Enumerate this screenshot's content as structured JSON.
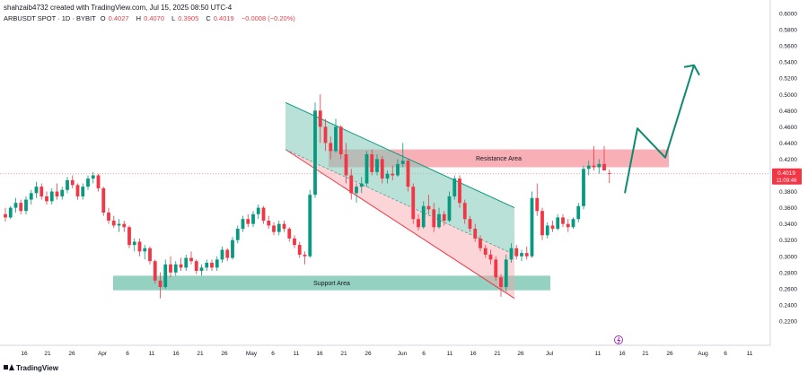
{
  "header": {
    "credit": "shahzaib4732 created with TradingView.com, Jul 15, 2025 08:50 UTC-4",
    "symbol": "ARBUSDT SPOT · 1D · BYBIT",
    "open_label": "O",
    "open": "0.4027",
    "high_label": "H",
    "high": "0.4070",
    "low_label": "L",
    "low": "0.3905",
    "close_label": "C",
    "close": "0.4019",
    "change": "−0.0008 (−0.20%)"
  },
  "footer": {
    "brand": "TradingView"
  },
  "chart_data": {
    "type": "candlestick",
    "ylim": [
      0.2,
      0.6
    ],
    "y_ticks": [
      "0.6000",
      "0.5800",
      "0.5600",
      "0.5400",
      "0.5200",
      "0.5000",
      "0.4800",
      "0.4600",
      "0.4400",
      "0.4200",
      "0.4000",
      "0.3800",
      "0.3600",
      "0.3400",
      "0.3200",
      "0.3000",
      "0.2800",
      "0.2600",
      "0.2400",
      "0.2200"
    ],
    "x_ticks": [
      "16",
      "21",
      "26",
      "Apr",
      "6",
      "11",
      "16",
      "21",
      "26",
      "May",
      "6",
      "11",
      "16",
      "21",
      "26",
      "Jun",
      "6",
      "11",
      "16",
      "21",
      "26",
      "Jul",
      "11",
      "16",
      "21",
      "26",
      "Aug",
      "6",
      "11",
      "16"
    ],
    "price_label": {
      "price": "0.4019",
      "countdown": "11:09:46",
      "color": "#f23645"
    },
    "zones": [
      {
        "label": "Resistance Area",
        "low": 0.41,
        "high": 0.432,
        "color": "#f7a1a8"
      },
      {
        "label": "Support Area",
        "low": 0.258,
        "high": 0.276,
        "color": "#81c9b6"
      }
    ],
    "colors": {
      "up": "#089981",
      "down": "#f23645",
      "projection": "#0b8a6f"
    },
    "candles": [
      [
        0.352,
        0.36,
        0.343,
        0.348
      ],
      [
        0.348,
        0.362,
        0.346,
        0.36
      ],
      [
        0.36,
        0.372,
        0.354,
        0.366
      ],
      [
        0.366,
        0.37,
        0.352,
        0.356
      ],
      [
        0.356,
        0.374,
        0.352,
        0.37
      ],
      [
        0.37,
        0.382,
        0.364,
        0.378
      ],
      [
        0.378,
        0.392,
        0.372,
        0.386
      ],
      [
        0.386,
        0.39,
        0.37,
        0.374
      ],
      [
        0.374,
        0.38,
        0.364,
        0.368
      ],
      [
        0.368,
        0.384,
        0.364,
        0.38
      ],
      [
        0.38,
        0.39,
        0.37,
        0.374
      ],
      [
        0.374,
        0.386,
        0.37,
        0.382
      ],
      [
        0.382,
        0.398,
        0.378,
        0.394
      ],
      [
        0.394,
        0.4,
        0.384,
        0.388
      ],
      [
        0.388,
        0.39,
        0.37,
        0.374
      ],
      [
        0.374,
        0.39,
        0.37,
        0.386
      ],
      [
        0.386,
        0.4,
        0.382,
        0.396
      ],
      [
        0.396,
        0.404,
        0.39,
        0.4
      ],
      [
        0.4,
        0.402,
        0.38,
        0.384
      ],
      [
        0.384,
        0.386,
        0.35,
        0.354
      ],
      [
        0.354,
        0.36,
        0.34,
        0.344
      ],
      [
        0.344,
        0.35,
        0.335,
        0.338
      ],
      [
        0.338,
        0.346,
        0.33,
        0.34
      ],
      [
        0.34,
        0.344,
        0.33,
        0.336
      ],
      [
        0.336,
        0.338,
        0.31,
        0.314
      ],
      [
        0.314,
        0.322,
        0.306,
        0.318
      ],
      [
        0.318,
        0.322,
        0.3,
        0.306
      ],
      [
        0.306,
        0.314,
        0.296,
        0.31
      ],
      [
        0.31,
        0.312,
        0.29,
        0.294
      ],
      [
        0.294,
        0.296,
        0.266,
        0.27
      ],
      [
        0.27,
        0.28,
        0.248,
        0.262
      ],
      [
        0.262,
        0.296,
        0.26,
        0.29
      ],
      [
        0.29,
        0.3,
        0.274,
        0.28
      ],
      [
        0.28,
        0.294,
        0.276,
        0.29
      ],
      [
        0.29,
        0.298,
        0.282,
        0.286
      ],
      [
        0.286,
        0.302,
        0.282,
        0.298
      ],
      [
        0.298,
        0.306,
        0.29,
        0.294
      ],
      [
        0.294,
        0.296,
        0.278,
        0.282
      ],
      [
        0.282,
        0.29,
        0.276,
        0.286
      ],
      [
        0.286,
        0.296,
        0.282,
        0.292
      ],
      [
        0.292,
        0.296,
        0.282,
        0.286
      ],
      [
        0.286,
        0.3,
        0.282,
        0.296
      ],
      [
        0.296,
        0.312,
        0.292,
        0.308
      ],
      [
        0.308,
        0.31,
        0.294,
        0.298
      ],
      [
        0.298,
        0.324,
        0.296,
        0.32
      ],
      [
        0.32,
        0.338,
        0.316,
        0.334
      ],
      [
        0.334,
        0.35,
        0.33,
        0.346
      ],
      [
        0.346,
        0.352,
        0.336,
        0.34
      ],
      [
        0.34,
        0.356,
        0.336,
        0.352
      ],
      [
        0.352,
        0.364,
        0.346,
        0.36
      ],
      [
        0.36,
        0.362,
        0.34,
        0.344
      ],
      [
        0.344,
        0.35,
        0.334,
        0.338
      ],
      [
        0.338,
        0.342,
        0.326,
        0.33
      ],
      [
        0.33,
        0.344,
        0.326,
        0.34
      ],
      [
        0.34,
        0.344,
        0.33,
        0.334
      ],
      [
        0.334,
        0.336,
        0.318,
        0.322
      ],
      [
        0.322,
        0.326,
        0.31,
        0.314
      ],
      [
        0.314,
        0.318,
        0.298,
        0.302
      ],
      [
        0.302,
        0.306,
        0.29,
        0.3
      ],
      [
        0.3,
        0.382,
        0.298,
        0.376
      ],
      [
        0.376,
        0.49,
        0.372,
        0.48
      ],
      [
        0.48,
        0.5,
        0.44,
        0.46
      ],
      [
        0.46,
        0.47,
        0.43,
        0.44
      ],
      [
        0.44,
        0.448,
        0.42,
        0.43
      ],
      [
        0.43,
        0.47,
        0.428,
        0.46
      ],
      [
        0.46,
        0.462,
        0.42,
        0.426
      ],
      [
        0.426,
        0.44,
        0.39,
        0.4
      ],
      [
        0.4,
        0.408,
        0.37,
        0.378
      ],
      [
        0.378,
        0.39,
        0.366,
        0.386
      ],
      [
        0.386,
        0.398,
        0.378,
        0.39
      ],
      [
        0.39,
        0.43,
        0.386,
        0.426
      ],
      [
        0.426,
        0.432,
        0.4,
        0.404
      ],
      [
        0.404,
        0.426,
        0.4,
        0.42
      ],
      [
        0.42,
        0.424,
        0.39,
        0.396
      ],
      [
        0.396,
        0.406,
        0.39,
        0.402
      ],
      [
        0.402,
        0.412,
        0.394,
        0.4
      ],
      [
        0.4,
        0.42,
        0.398,
        0.414
      ],
      [
        0.414,
        0.44,
        0.41,
        0.418
      ],
      [
        0.418,
        0.42,
        0.38,
        0.386
      ],
      [
        0.386,
        0.39,
        0.34,
        0.346
      ],
      [
        0.346,
        0.352,
        0.332,
        0.336
      ],
      [
        0.336,
        0.368,
        0.334,
        0.362
      ],
      [
        0.362,
        0.376,
        0.352,
        0.358
      ],
      [
        0.358,
        0.366,
        0.33,
        0.336
      ],
      [
        0.336,
        0.36,
        0.334,
        0.352
      ],
      [
        0.352,
        0.356,
        0.338,
        0.344
      ],
      [
        0.344,
        0.38,
        0.342,
        0.374
      ],
      [
        0.374,
        0.4,
        0.37,
        0.396
      ],
      [
        0.396,
        0.4,
        0.36,
        0.366
      ],
      [
        0.366,
        0.37,
        0.34,
        0.346
      ],
      [
        0.346,
        0.35,
        0.33,
        0.334
      ],
      [
        0.334,
        0.34,
        0.318,
        0.322
      ],
      [
        0.322,
        0.326,
        0.306,
        0.31
      ],
      [
        0.31,
        0.314,
        0.298,
        0.302
      ],
      [
        0.302,
        0.308,
        0.29,
        0.296
      ],
      [
        0.296,
        0.3,
        0.27,
        0.274
      ],
      [
        0.274,
        0.278,
        0.25,
        0.262
      ],
      [
        0.262,
        0.302,
        0.256,
        0.296
      ],
      [
        0.296,
        0.316,
        0.292,
        0.31
      ],
      [
        0.31,
        0.314,
        0.296,
        0.3
      ],
      [
        0.3,
        0.308,
        0.294,
        0.304
      ],
      [
        0.304,
        0.312,
        0.296,
        0.3
      ],
      [
        0.3,
        0.38,
        0.298,
        0.372
      ],
      [
        0.372,
        0.39,
        0.35,
        0.356
      ],
      [
        0.356,
        0.36,
        0.32,
        0.326
      ],
      [
        0.326,
        0.342,
        0.322,
        0.338
      ],
      [
        0.338,
        0.344,
        0.33,
        0.334
      ],
      [
        0.334,
        0.352,
        0.332,
        0.348
      ],
      [
        0.348,
        0.352,
        0.336,
        0.34
      ],
      [
        0.34,
        0.346,
        0.33,
        0.336
      ],
      [
        0.336,
        0.348,
        0.334,
        0.346
      ],
      [
        0.346,
        0.366,
        0.342,
        0.362
      ],
      [
        0.362,
        0.412,
        0.358,
        0.408
      ],
      [
        0.408,
        0.418,
        0.4,
        0.412
      ],
      [
        0.412,
        0.436,
        0.406,
        0.41
      ],
      [
        0.41,
        0.42,
        0.402,
        0.414
      ],
      [
        0.414,
        0.436,
        0.408,
        0.406
      ],
      [
        0.4027,
        0.407,
        0.3905,
        0.4019
      ]
    ],
    "channel": {
      "upper_start": 0.49,
      "upper_end": 0.36,
      "lower_start": 0.432,
      "lower_end": 0.248,
      "mid_start": 0.432,
      "mid_end": 0.302
    },
    "projection_path": [
      0.378,
      0.458,
      0.422,
      0.536
    ],
    "forecast_icon": "lightning-icon"
  }
}
